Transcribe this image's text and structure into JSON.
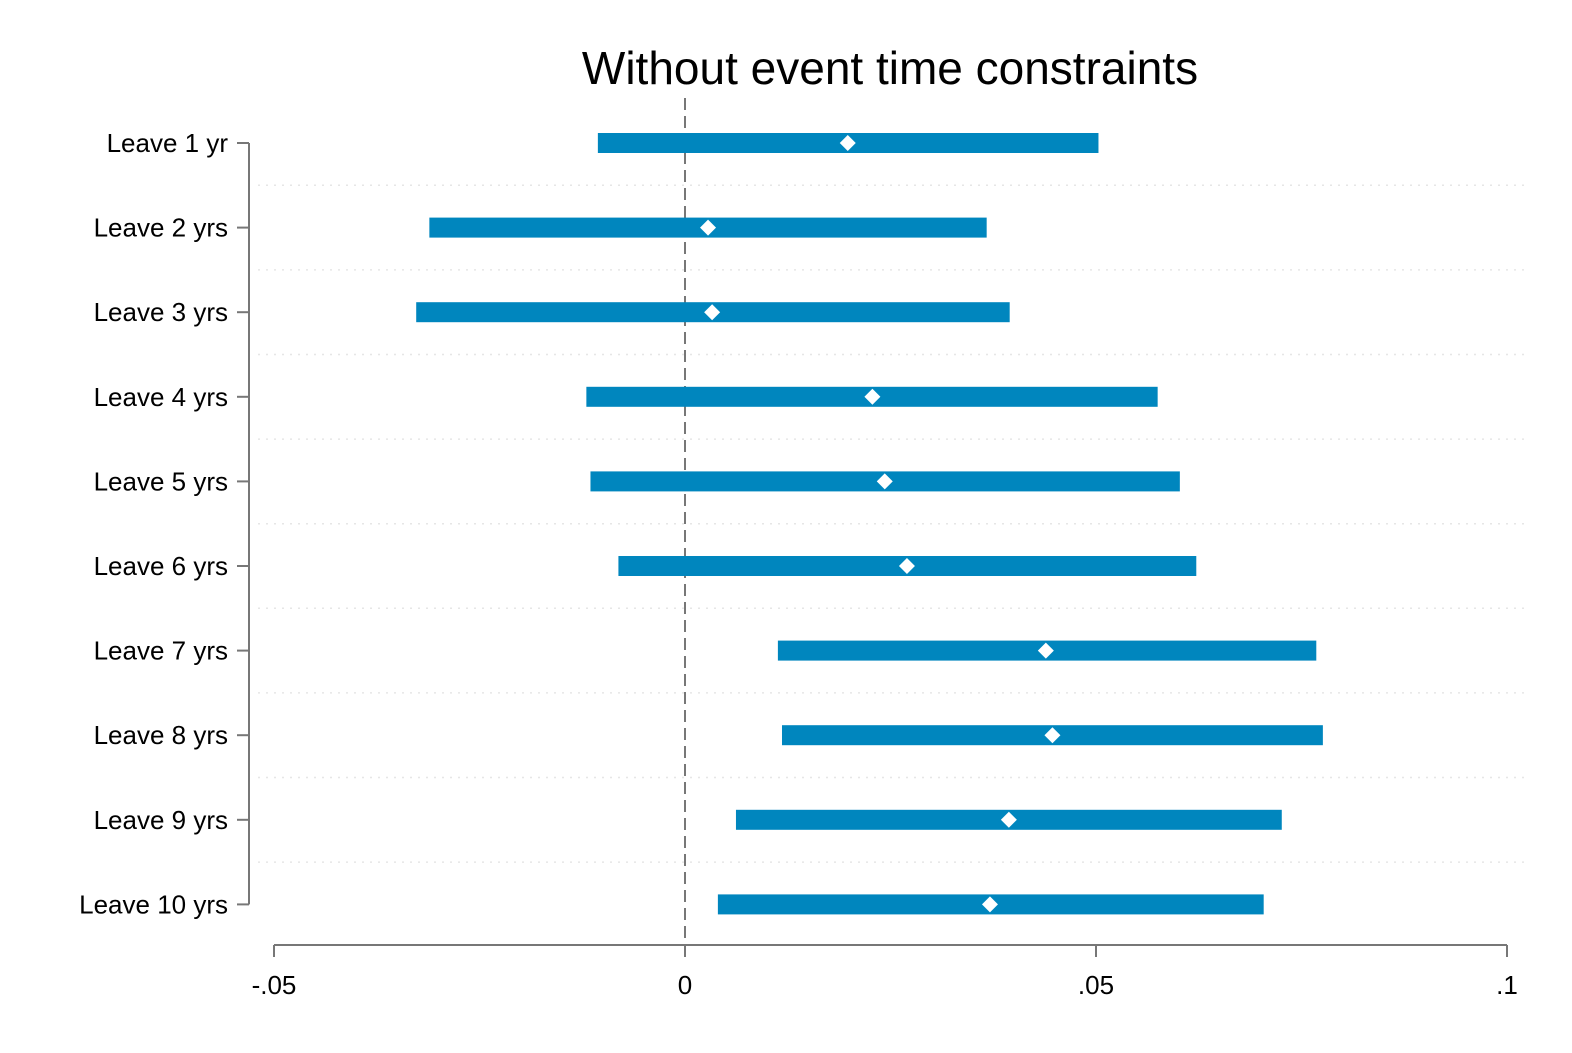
{
  "chart_data": {
    "type": "coefficient-plot",
    "orientation": "horizontal",
    "title": "Without event time constraints",
    "xlabel": "",
    "ylabel": "",
    "xlim": [
      -0.05,
      0.1
    ],
    "xticks": [
      {
        "value": -0.05,
        "label": "-.05"
      },
      {
        "value": 0,
        "label": "0"
      },
      {
        "value": 0.05,
        "label": ".05"
      },
      {
        "value": 0.1,
        "label": ".1"
      }
    ],
    "reference_line": {
      "value": 0,
      "style": "dashed"
    },
    "grid": true,
    "legend": "none",
    "colors": {
      "interval": "#0086BE",
      "marker": "#ffffff",
      "axis": "#777777",
      "grid": "#e6e6e6",
      "reference": "#777777"
    },
    "categories": [
      "Leave 1 yr",
      "Leave 2 yrs",
      "Leave 3 yrs",
      "Leave 4 yrs",
      "Leave 5 yrs",
      "Leave 6 yrs",
      "Leave 7 yrs",
      "Leave 8 yrs",
      "Leave 9 yrs",
      "Leave 10 yrs"
    ],
    "estimates": [
      0.0198,
      0.0028,
      0.0033,
      0.0228,
      0.0243,
      0.027,
      0.0439,
      0.0447,
      0.0394,
      0.0371
    ],
    "ci_low": [
      -0.0106,
      -0.0311,
      -0.0327,
      -0.012,
      -0.0115,
      -0.0081,
      0.0113,
      0.0118,
      0.0062,
      0.004
    ],
    "ci_high": [
      0.0503,
      0.0367,
      0.0395,
      0.0575,
      0.0602,
      0.0622,
      0.0768,
      0.0776,
      0.0726,
      0.0704
    ]
  }
}
